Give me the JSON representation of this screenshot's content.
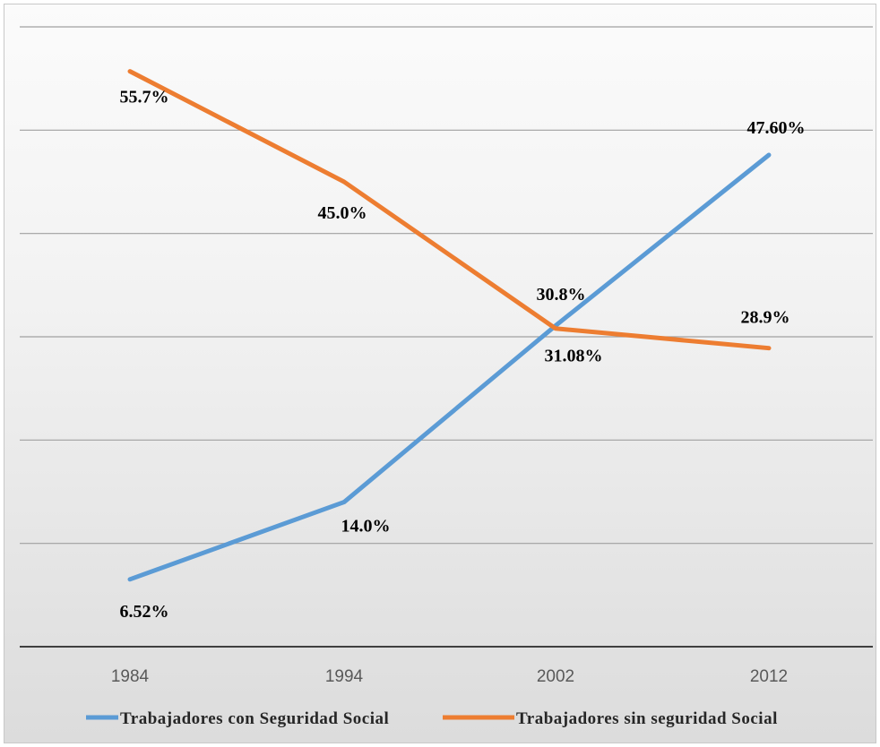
{
  "chart_data": {
    "type": "line",
    "title": "",
    "xlabel": "",
    "ylabel": "",
    "categories": [
      "1984",
      "1994",
      "2002",
      "2012"
    ],
    "ylim": [
      0,
      0.6
    ],
    "grid": true,
    "legend_position": "bottom",
    "series": [
      {
        "name": "Trabajadores con Seguridad Social",
        "color": "#5B9BD5",
        "values": [
          0.0652,
          0.14,
          0.3108,
          0.476
        ],
        "labels": [
          "6.52%",
          "14.0%",
          "31.08%",
          "47.60%"
        ]
      },
      {
        "name": "Trabajadores sin seguridad Social",
        "color": "#ED7D31",
        "values": [
          0.557,
          0.45,
          0.308,
          0.289
        ],
        "labels": [
          "55.7%",
          "45.0%",
          "30.8%",
          "28.9%"
        ]
      }
    ]
  }
}
